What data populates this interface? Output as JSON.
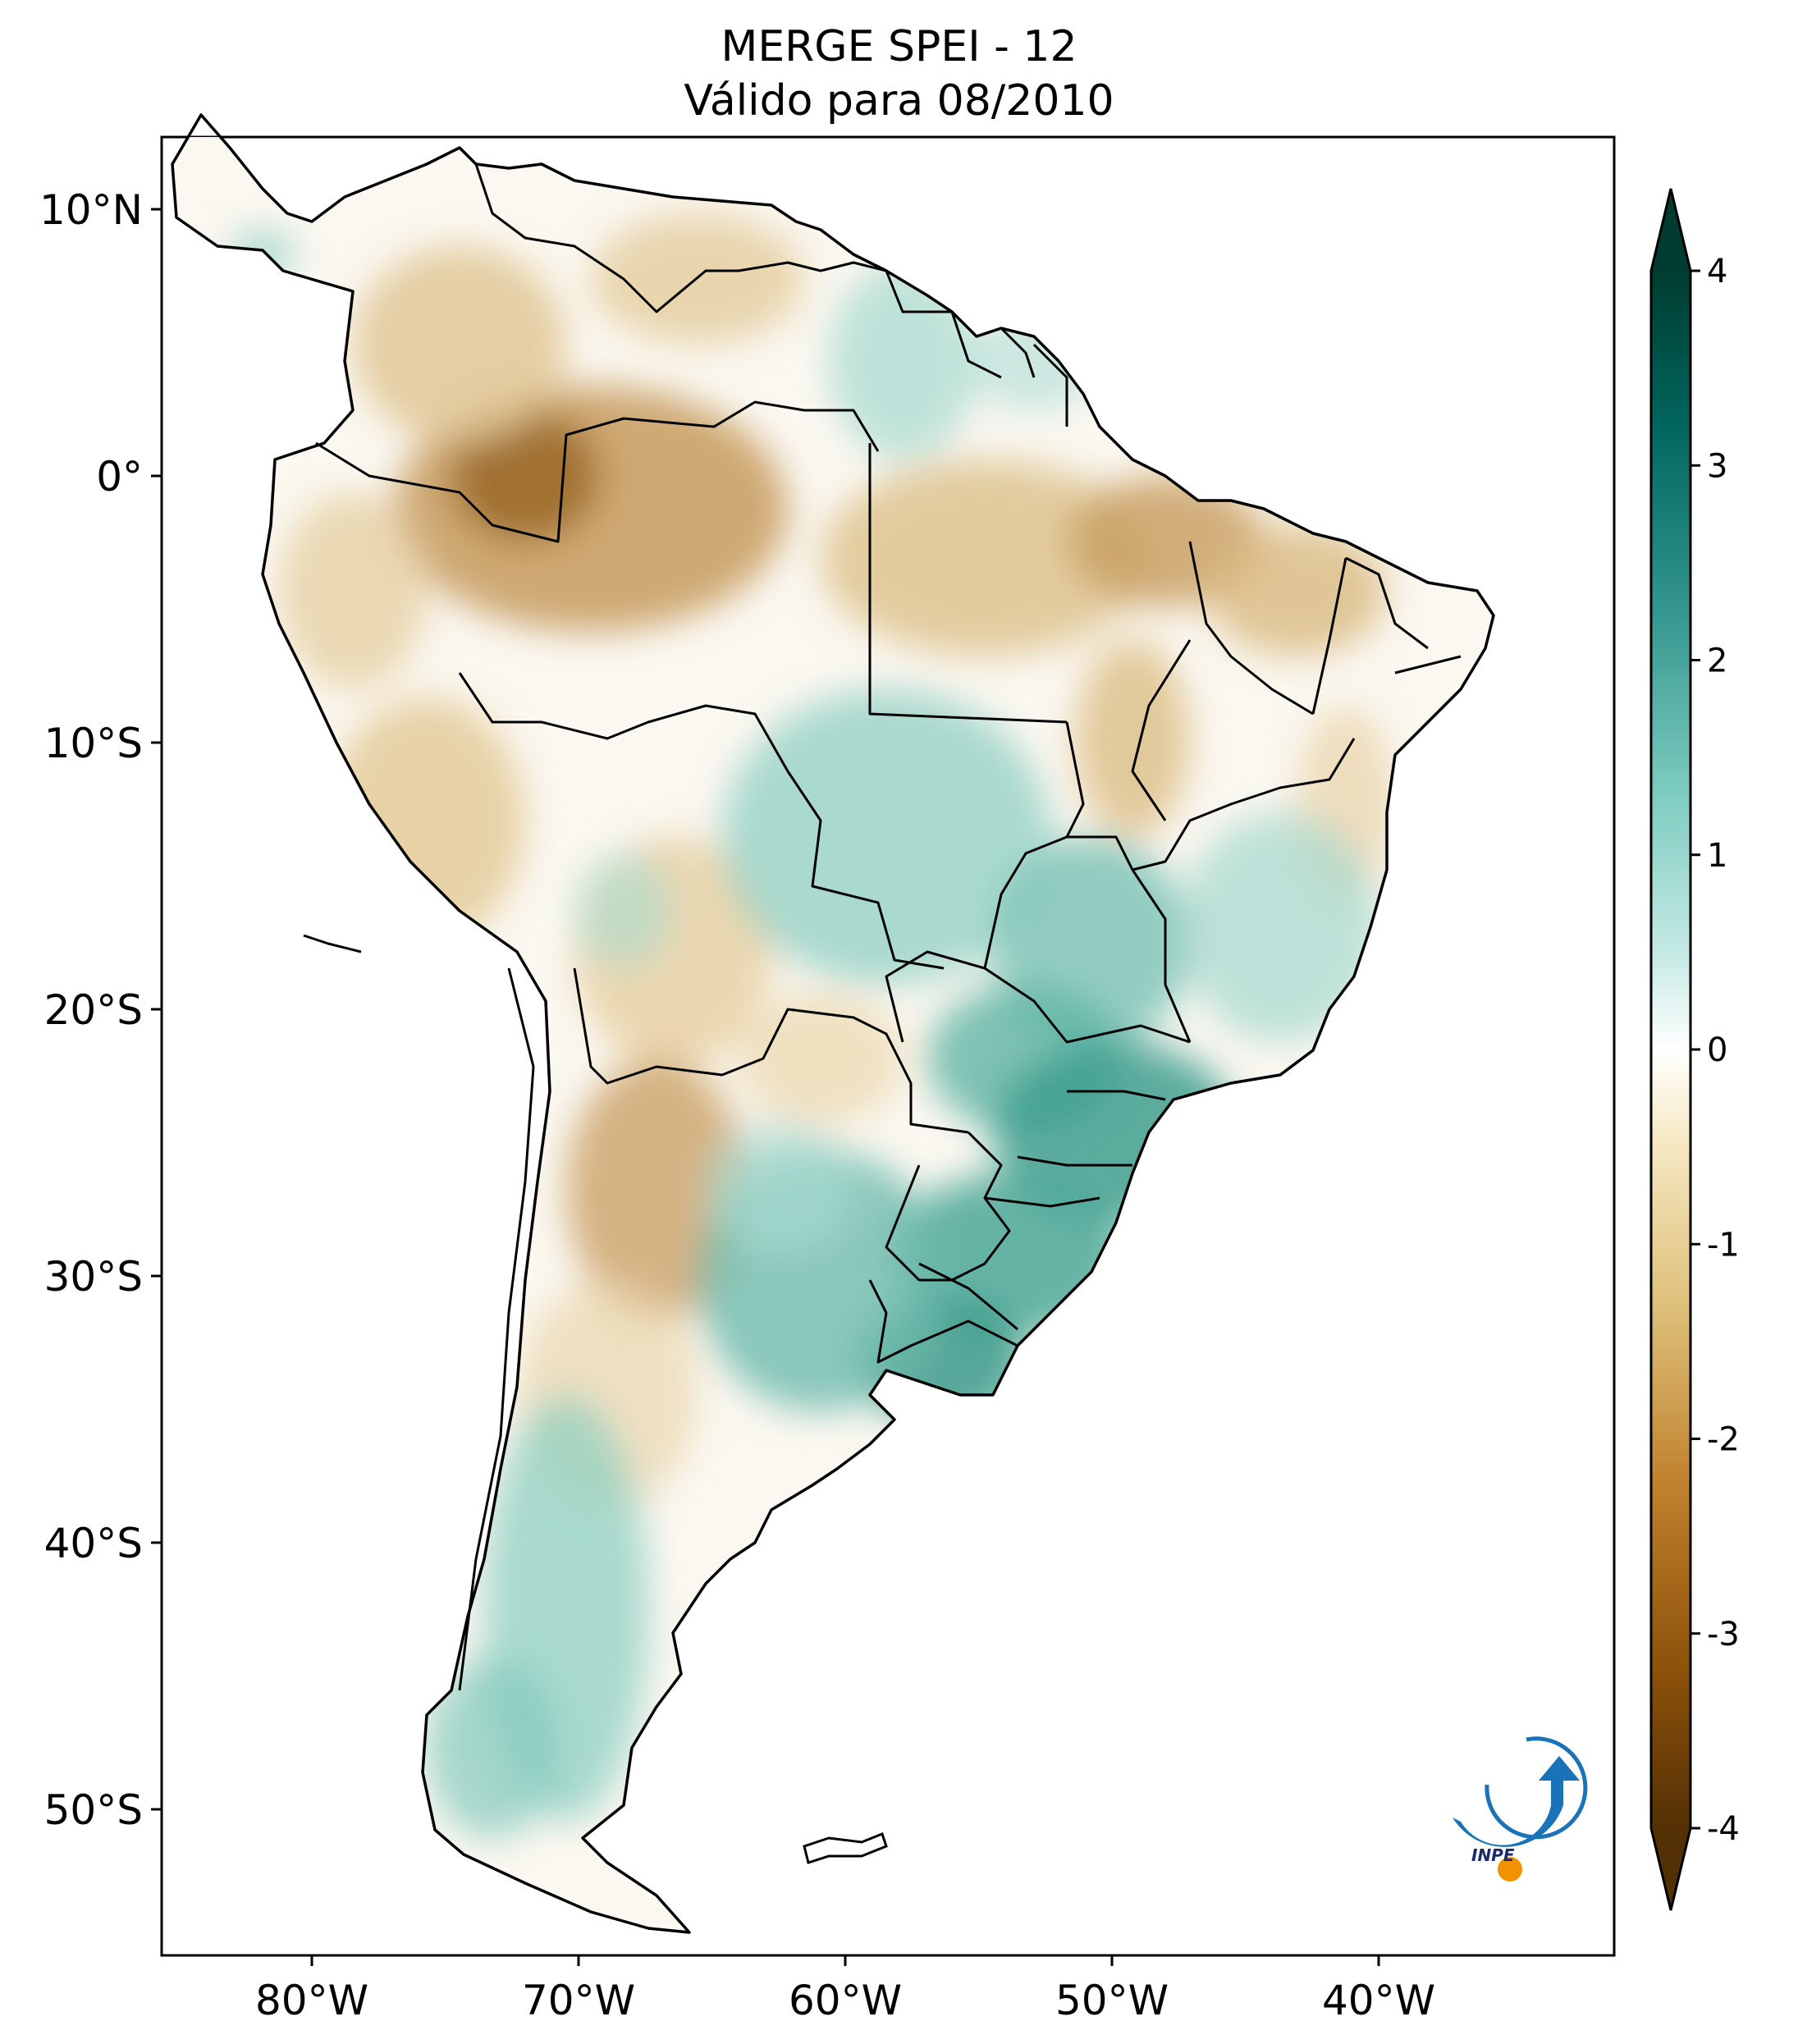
{
  "title": {
    "line1": "MERGE   SPEI - 12",
    "line2": "Válido para 08/2010"
  },
  "axes": {
    "lat_labels": [
      "10°N",
      "0°",
      "10°S",
      "20°S",
      "30°S",
      "40°S",
      "50°S"
    ],
    "lon_labels": [
      "80°W",
      "70°W",
      "60°W",
      "50°W",
      "40°W"
    ]
  },
  "colorbar": {
    "min": -4,
    "max": 4,
    "ticks": [
      "4",
      "3",
      "2",
      "1",
      "0",
      "-1",
      "-2",
      "-3",
      "-4"
    ],
    "extend": "both",
    "colors": [
      "#543005",
      "#8c510a",
      "#bf812d",
      "#dfc27d",
      "#f6e8c3",
      "#ffffff",
      "#c7eae5",
      "#80cdc1",
      "#35978f",
      "#01665e",
      "#003c30"
    ]
  },
  "logo": {
    "text": "INPE"
  },
  "colors": {
    "dry": "#c9a064",
    "wet": "#3aa392",
    "border": "#000000"
  }
}
